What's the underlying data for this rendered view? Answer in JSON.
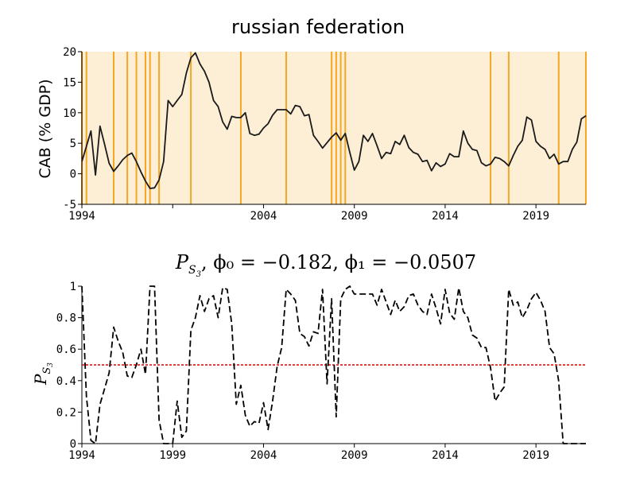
{
  "chart_data": [
    {
      "type": "line",
      "title": "russian federation",
      "ylabel": "CAB (% GDP)",
      "xlabel": "",
      "xlim": [
        1994,
        2021.75
      ],
      "ylim": [
        -5,
        20
      ],
      "xticks": [
        "1994",
        "2004",
        "2009",
        "2014",
        "2019"
      ],
      "xtick_values": [
        1994,
        2004,
        2009,
        2014,
        2019
      ],
      "xticks_extra": [
        "1999"
      ],
      "xtick_values_extra": [
        1999
      ],
      "yticks": [
        "-5",
        "0",
        "5",
        "10",
        "15",
        "20"
      ],
      "ytick_values": [
        -5,
        0,
        5,
        10,
        15,
        20
      ],
      "background_color": "#fdefd6",
      "event_line_color": "#f5a623",
      "line_color": "#1a1a1a",
      "event_dates": [
        1994.0,
        1994.25,
        1995.75,
        1996.5,
        1997.0,
        1997.5,
        1997.75,
        1998.25,
        2000.0,
        2002.75,
        2005.25,
        2007.75,
        2008.0,
        2008.25,
        2008.5,
        2016.5,
        2017.5,
        2020.25,
        2021.75
      ],
      "x": [
        1994.0,
        1994.25,
        1994.5,
        1994.75,
        1995.0,
        1995.25,
        1995.5,
        1995.75,
        1996.0,
        1996.25,
        1996.5,
        1996.75,
        1997.0,
        1997.25,
        1997.5,
        1997.75,
        1998.0,
        1998.25,
        1998.5,
        1998.75,
        1999.0,
        1999.25,
        1999.5,
        1999.75,
        2000.0,
        2000.25,
        2000.5,
        2000.75,
        2001.0,
        2001.25,
        2001.5,
        2001.75,
        2002.0,
        2002.25,
        2002.5,
        2002.75,
        2003.0,
        2003.25,
        2003.5,
        2003.75,
        2004.0,
        2004.25,
        2004.5,
        2004.75,
        2005.0,
        2005.25,
        2005.5,
        2005.75,
        2006.0,
        2006.25,
        2006.5,
        2006.75,
        2007.0,
        2007.25,
        2007.5,
        2007.75,
        2008.0,
        2008.25,
        2008.5,
        2008.75,
        2009.0,
        2009.25,
        2009.5,
        2009.75,
        2010.0,
        2010.25,
        2010.5,
        2010.75,
        2011.0,
        2011.25,
        2011.5,
        2011.75,
        2012.0,
        2012.25,
        2012.5,
        2012.75,
        2013.0,
        2013.25,
        2013.5,
        2013.75,
        2014.0,
        2014.25,
        2014.5,
        2014.75,
        2015.0,
        2015.25,
        2015.5,
        2015.75,
        2016.0,
        2016.25,
        2016.5,
        2016.75,
        2017.0,
        2017.25,
        2017.5,
        2017.75,
        2018.0,
        2018.25,
        2018.5,
        2018.75,
        2019.0,
        2019.25,
        2019.5,
        2019.75,
        2020.0,
        2020.25,
        2020.5,
        2020.75,
        2021.0,
        2021.25,
        2021.5,
        2021.75
      ],
      "y": [
        2.0,
        4.5,
        7.0,
        -0.2,
        7.8,
        4.8,
        1.7,
        0.4,
        1.3,
        2.3,
        3.0,
        3.4,
        2.0,
        0.3,
        -1.2,
        -2.4,
        -2.3,
        -1.0,
        2.0,
        12.0,
        11.0,
        12.0,
        13.0,
        16.5,
        19.0,
        19.8,
        18.0,
        16.8,
        15.0,
        12.0,
        11.0,
        8.5,
        7.3,
        9.4,
        9.2,
        9.2,
        10.0,
        6.6,
        6.3,
        6.5,
        7.5,
        8.2,
        9.6,
        10.5,
        10.5,
        10.5,
        9.8,
        11.2,
        11.0,
        9.5,
        9.7,
        6.3,
        5.3,
        4.2,
        5.1,
        6.0,
        6.7,
        5.5,
        6.6,
        3.5,
        0.6,
        2.0,
        6.3,
        5.3,
        6.6,
        4.6,
        2.5,
        3.5,
        3.3,
        5.3,
        4.8,
        6.3,
        4.3,
        3.5,
        3.2,
        2.0,
        2.2,
        0.5,
        1.8,
        1.2,
        1.6,
        3.3,
        2.8,
        2.8,
        7.0,
        5.0,
        4.0,
        3.8,
        1.8,
        1.3,
        1.6,
        2.7,
        2.5,
        2.0,
        1.3,
        3.0,
        4.5,
        5.5,
        9.3,
        8.8,
        5.3,
        4.5,
        4.0,
        2.5,
        3.2,
        1.6,
        2.0,
        2.0,
        4.0,
        5.2,
        9.0,
        9.5
      ]
    },
    {
      "type": "line",
      "title": "P_{S_3}, φ0 = −0.182, φ1 = −0.0507",
      "title_parts": {
        "p": "P",
        "sub": "S",
        "subsub": "3",
        "rest": ", ϕ₀ = −0.182, ϕ₁ = −0.0507"
      },
      "ylabel": "P_{S_3}",
      "ylabel_parts": {
        "p": "P",
        "sub": "S",
        "subsub": "3"
      },
      "xlim": [
        1994,
        2021.75
      ],
      "ylim": [
        0,
        1
      ],
      "xticks": [
        "1994",
        "1999",
        "2004",
        "2009",
        "2014",
        "2019"
      ],
      "xtick_values": [
        1994,
        1999,
        2004,
        2009,
        2014,
        2019
      ],
      "yticks": [
        "0",
        "0.2",
        "0.4",
        "0.6",
        "0.8",
        "1"
      ],
      "ytick_values": [
        0,
        0.2,
        0.4,
        0.6,
        0.8,
        1
      ],
      "threshold": 0.5,
      "threshold_color": "#e00000",
      "line_style": "dashed",
      "line_color": "#000000",
      "x": [
        1994.0,
        1994.25,
        1994.5,
        1994.75,
        1995.0,
        1995.25,
        1995.5,
        1995.75,
        1996.0,
        1996.25,
        1996.5,
        1996.75,
        1997.0,
        1997.25,
        1997.5,
        1997.75,
        1998.0,
        1998.25,
        1998.5,
        1998.75,
        1999.0,
        1999.25,
        1999.5,
        1999.75,
        2000.0,
        2000.25,
        2000.5,
        2000.75,
        2001.0,
        2001.25,
        2001.5,
        2001.75,
        2002.0,
        2002.25,
        2002.5,
        2002.75,
        2003.0,
        2003.25,
        2003.5,
        2003.75,
        2004.0,
        2004.25,
        2004.5,
        2004.75,
        2005.0,
        2005.25,
        2005.5,
        2005.75,
        2006.0,
        2006.25,
        2006.5,
        2006.75,
        2007.0,
        2007.25,
        2007.5,
        2007.75,
        2008.0,
        2008.25,
        2008.5,
        2008.75,
        2009.0,
        2009.25,
        2009.5,
        2009.75,
        2010.0,
        2010.25,
        2010.5,
        2010.75,
        2011.0,
        2011.25,
        2011.5,
        2011.75,
        2012.0,
        2012.25,
        2012.5,
        2012.75,
        2013.0,
        2013.25,
        2013.5,
        2013.75,
        2014.0,
        2014.25,
        2014.5,
        2014.75,
        2015.0,
        2015.25,
        2015.5,
        2015.75,
        2016.0,
        2016.25,
        2016.5,
        2016.75,
        2017.0,
        2017.25,
        2017.5,
        2017.75,
        2018.0,
        2018.25,
        2018.5,
        2018.75,
        2019.0,
        2019.25,
        2019.5,
        2019.75,
        2020.0,
        2020.25,
        2020.5,
        2020.75,
        2021.0,
        2021.25,
        2021.5,
        2021.75
      ],
      "y": [
        1.0,
        0.3,
        0.02,
        0.0,
        0.25,
        0.35,
        0.45,
        0.74,
        0.65,
        0.58,
        0.43,
        0.42,
        0.5,
        0.6,
        0.44,
        1.0,
        1.0,
        0.15,
        0.0,
        0.0,
        0.0,
        0.27,
        0.04,
        0.08,
        0.72,
        0.8,
        0.94,
        0.84,
        0.92,
        0.94,
        0.8,
        0.99,
        0.98,
        0.76,
        0.25,
        0.37,
        0.18,
        0.11,
        0.14,
        0.13,
        0.26,
        0.09,
        0.27,
        0.49,
        0.61,
        0.98,
        0.95,
        0.91,
        0.7,
        0.68,
        0.62,
        0.71,
        0.7,
        0.98,
        0.38,
        0.92,
        0.17,
        0.92,
        0.98,
        1.0,
        0.95,
        0.95,
        0.95,
        0.95,
        0.95,
        0.88,
        0.98,
        0.9,
        0.82,
        0.91,
        0.84,
        0.87,
        0.94,
        0.95,
        0.88,
        0.84,
        0.82,
        0.95,
        0.86,
        0.76,
        0.98,
        0.83,
        0.79,
        0.99,
        0.84,
        0.8,
        0.69,
        0.67,
        0.61,
        0.61,
        0.48,
        0.27,
        0.32,
        0.36,
        0.98,
        0.88,
        0.9,
        0.8,
        0.85,
        0.92,
        0.96,
        0.91,
        0.84,
        0.61,
        0.57,
        0.4,
        0.0,
        0.0,
        0.0,
        0.0,
        0.0,
        0.0
      ]
    }
  ]
}
